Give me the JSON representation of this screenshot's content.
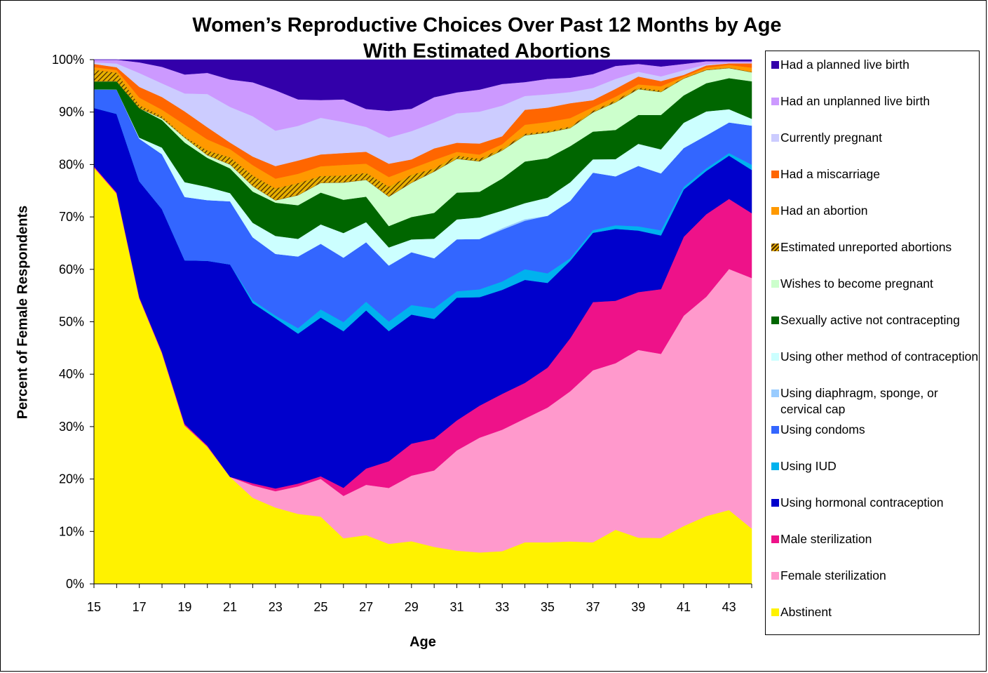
{
  "chart_data": {
    "type": "area",
    "stacked": true,
    "normalized": true,
    "title": "Women’s Reproductive Choices Over Past 12 Months by Age",
    "subtitle": "With Estimated Abortions",
    "xlabel": "Age",
    "ylabel": "Percent of Female Respondents",
    "x": [
      15,
      16,
      17,
      18,
      19,
      20,
      21,
      22,
      23,
      24,
      25,
      26,
      27,
      28,
      29,
      30,
      31,
      32,
      33,
      34,
      35,
      36,
      37,
      38,
      39,
      40,
      41,
      42,
      43,
      44
    ],
    "xticks": [
      "15",
      "17",
      "19",
      "21",
      "23",
      "25",
      "27",
      "29",
      "31",
      "33",
      "35",
      "37",
      "39",
      "41",
      "43"
    ],
    "yticks": [
      "0%",
      "10%",
      "20%",
      "30%",
      "40%",
      "50%",
      "60%",
      "70%",
      "80%",
      "90%",
      "100%"
    ],
    "ylim": [
      0,
      100
    ],
    "legend_position": "right",
    "series": [
      {
        "name": "Abstinent",
        "color": "#FFF200",
        "values": [
          78.5,
          72,
          53.5,
          42,
          30,
          26,
          19.5,
          16,
          14,
          12.7,
          12.5,
          8.5,
          9,
          7.5,
          8,
          7,
          6.2,
          6,
          6.2,
          7.8,
          7.8,
          8,
          7.8,
          10.4,
          8.8,
          8.8,
          11,
          13,
          14,
          10.5
        ]
      },
      {
        "name": "Female sterilization",
        "color": "#FF99CC",
        "values": [
          0,
          0,
          0,
          0,
          0,
          0,
          0,
          2.3,
          3,
          5,
          7,
          7.9,
          9.3,
          10.5,
          12.3,
          14.5,
          18.7,
          21.9,
          23,
          23.2,
          25.3,
          28.3,
          32.3,
          32,
          35.7,
          35.3,
          40,
          42,
          45.7,
          47.5
        ]
      },
      {
        "name": "Male sterilization",
        "color": "#EE1289",
        "values": [
          0.2,
          0.2,
          0.2,
          0.2,
          0.3,
          0.2,
          0,
          0.4,
          0.5,
          0.5,
          0.5,
          1.5,
          3,
          5,
          6,
          6,
          5.6,
          6.1,
          6.8,
          6.7,
          7.5,
          10,
          12.8,
          12,
          11,
          12.4,
          15,
          15.8,
          13.3,
          12.3
        ]
      },
      {
        "name": "Using hormonal contraception",
        "color": "#0000CC",
        "values": [
          11,
          14.5,
          21.7,
          26,
          31,
          35,
          38.7,
          33.5,
          31.2,
          27.2,
          29.5,
          29.2,
          29.2,
          24.4,
          24.2,
          22.7,
          22.9,
          20.7,
          19.7,
          19.3,
          15.9,
          14.6,
          13,
          13.8,
          11.7,
          10.3,
          9,
          8.3,
          8.2,
          8.2
        ]
      },
      {
        "name": "Using IUD",
        "color": "#00B2EE",
        "values": [
          0,
          0,
          0,
          0,
          0,
          0,
          0,
          0.5,
          0.5,
          1,
          1.5,
          1.7,
          1.6,
          1.8,
          1.8,
          2,
          1.2,
          1.5,
          1.6,
          2,
          1.8,
          0.5,
          0.5,
          0.7,
          0.8,
          1,
          0.5,
          0.5,
          0.5,
          1
        ]
      },
      {
        "name": "Using condoms",
        "color": "#3366FF",
        "values": [
          3.5,
          4.5,
          8,
          10,
          12,
          11.5,
          11.5,
          11.7,
          11.3,
          13,
          12.2,
          12,
          11,
          10.5,
          9.9,
          9.5,
          9.7,
          9.6,
          9.8,
          9.1,
          10.8,
          10.8,
          10.8,
          9.4,
          11.5,
          10.9,
          7.4,
          6.3,
          5.8,
          7.4
        ]
      },
      {
        "name": "Using diaphragm, sponge, or cervical cap",
        "color": "#99CCFF",
        "values": [
          0,
          0,
          0,
          0,
          0,
          0,
          0,
          0,
          0,
          0,
          0,
          0,
          0,
          0,
          0,
          0,
          0,
          0,
          0.3,
          0.3,
          0,
          0,
          0,
          0,
          0,
          0,
          0,
          0,
          0,
          0
        ]
      },
      {
        "name": "Using other method of contraception",
        "color": "#CCFFFF",
        "values": [
          0,
          0,
          0.2,
          1.2,
          2.8,
          2.5,
          1.5,
          2.7,
          3.3,
          3.2,
          3.6,
          4.6,
          3.7,
          3.4,
          2.4,
          3.7,
          3.7,
          4.1,
          3.3,
          3,
          3.4,
          3.5,
          2.5,
          3.3,
          4.2,
          4.6,
          4.8,
          4.6,
          2.5,
          1.3
        ]
      },
      {
        "name": "Sexually active not contracepting",
        "color": "#006600",
        "values": [
          1.5,
          1.5,
          5.5,
          5,
          7.5,
          5.5,
          4.5,
          5.8,
          6.1,
          6.1,
          5.9,
          6.2,
          4.7,
          4,
          4.2,
          4.9,
          5,
          4.9,
          6.1,
          7.8,
          7.4,
          6.8,
          5.2,
          5.6,
          5.5,
          6.6,
          5.2,
          5.4,
          5.9,
          7.1
        ]
      },
      {
        "name": "Wishes to become pregnant",
        "color": "#CCFFCC",
        "values": [
          0,
          0,
          0,
          0.3,
          0.9,
          0.5,
          0.7,
          1,
          0.4,
          1.8,
          1.8,
          3.2,
          3.1,
          5.5,
          6.4,
          7.8,
          6.3,
          5.8,
          5.3,
          4.9,
          4.8,
          3.4,
          3.6,
          5.3,
          4.9,
          4.4,
          3.2,
          2.5,
          1.9,
          1.7
        ]
      },
      {
        "name": "Estimated unreported abortions",
        "color": "#8B5A00",
        "pattern": "hatched",
        "values": [
          2.2,
          1.6,
          0.6,
          0.4,
          0.2,
          0.9,
          1.3,
          2,
          2.2,
          2.2,
          1.3,
          1.3,
          1.3,
          1.9,
          1.5,
          0.6,
          0.6,
          0.5,
          0.4,
          0.3,
          0.3,
          0.3,
          0.3,
          0.4,
          0.3,
          0.3,
          0.1,
          0.1,
          0.1,
          0.1
        ]
      },
      {
        "name": "Had an abortion",
        "color": "#FF9900",
        "values": [
          0.5,
          0.5,
          1.4,
          1.2,
          2.3,
          2.1,
          1.5,
          1.9,
          1.8,
          1.7,
          1.8,
          2,
          1.7,
          1.8,
          1.2,
          1.6,
          0.7,
          0.8,
          0.8,
          1.7,
          1.7,
          1.6,
          0.7,
          0.7,
          0.6,
          0.8,
          0.3,
          0.4,
          0.5,
          0.8
        ]
      },
      {
        "name": "Had a miscarriage",
        "color": "#FF6600",
        "values": [
          0.6,
          0.5,
          2,
          2.3,
          2.5,
          2.3,
          1.2,
          1.6,
          2.3,
          2.4,
          2.2,
          2.2,
          2.2,
          2.5,
          1.7,
          2.2,
          1.7,
          2.1,
          1.5,
          2.8,
          2.7,
          2.8,
          1.3,
          1.5,
          1.5,
          1,
          0.3,
          0.4,
          0.3,
          0.8
        ]
      },
      {
        "name": "Currently pregnant",
        "color": "#CCCCFF",
        "values": [
          0.3,
          0.7,
          2.6,
          2.5,
          3.4,
          6.3,
          6.5,
          7.5,
          6.5,
          6.3,
          6.8,
          5.8,
          4.6,
          4.9,
          5.3,
          4.9,
          5.5,
          6.1,
          5.8,
          2.6,
          2.5,
          2.1,
          2.3,
          1.9,
          0.9,
          0.9,
          0.9,
          0.2,
          0.1,
          0.1
        ]
      },
      {
        "name": "Had an unplanned live birth",
        "color": "#CC99FF",
        "values": [
          0.5,
          0.7,
          2,
          3,
          3.6,
          4,
          5,
          6.3,
          7.4,
          4.8,
          3.3,
          4.2,
          3.3,
          5,
          4.2,
          4.8,
          3.9,
          4.2,
          4.1,
          2.6,
          2.9,
          2.7,
          2.6,
          2.5,
          1.5,
          1.9,
          1.2,
          0.6,
          0.3,
          0.3
        ]
      },
      {
        "name": "Had a planned live birth",
        "color": "#3300AA",
        "values": [
          0,
          0,
          0.5,
          1.3,
          2.8,
          2.5,
          3.6,
          4.2,
          5.6,
          7.2,
          7.5,
          7.4,
          9.1,
          9.6,
          9.2,
          7.1,
          6.1,
          5.7,
          4.6,
          4.2,
          3.6,
          3.4,
          2.7,
          1.2,
          0.8,
          1.3,
          0.8,
          0.3,
          0.3,
          0.3
        ]
      }
    ]
  }
}
